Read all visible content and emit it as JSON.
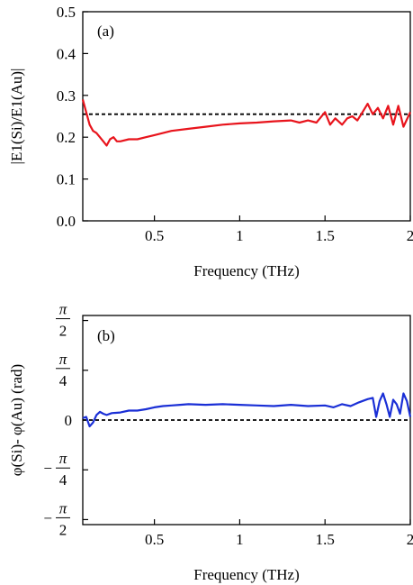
{
  "chart_data": [
    {
      "id": "a",
      "type": "line",
      "panel_label": "(a)",
      "xlabel": "Frequency (THz)",
      "ylabel": "|E1(Si)/E1(Au)|",
      "xlim": [
        0.08,
        2.0
      ],
      "ylim": [
        0.0,
        0.5
      ],
      "x_ticks": [
        0.5,
        1,
        1.5,
        2
      ],
      "x_tick_labels": [
        "0.5",
        "1",
        "1.5",
        "2"
      ],
      "y_ticks": [
        0.0,
        0.1,
        0.2,
        0.3,
        0.4,
        0.5
      ],
      "y_tick_labels": [
        "0.0",
        "0.1",
        "0.2",
        "0.3",
        "0.4",
        "0.5"
      ],
      "reference_line": {
        "y": 0.255,
        "style": "dashed",
        "color": "#000000"
      },
      "series": [
        {
          "color": "#e8141c",
          "x": [
            0.08,
            0.1,
            0.12,
            0.14,
            0.16,
            0.18,
            0.2,
            0.22,
            0.24,
            0.26,
            0.28,
            0.3,
            0.35,
            0.4,
            0.45,
            0.5,
            0.55,
            0.6,
            0.7,
            0.8,
            0.9,
            1.0,
            1.1,
            1.2,
            1.3,
            1.35,
            1.4,
            1.45,
            1.5,
            1.53,
            1.56,
            1.6,
            1.63,
            1.66,
            1.69,
            1.72,
            1.75,
            1.78,
            1.81,
            1.84,
            1.87,
            1.9,
            1.93,
            1.96,
            2.0
          ],
          "values": [
            0.29,
            0.26,
            0.23,
            0.215,
            0.21,
            0.2,
            0.19,
            0.18,
            0.195,
            0.2,
            0.19,
            0.19,
            0.195,
            0.195,
            0.2,
            0.205,
            0.21,
            0.215,
            0.22,
            0.225,
            0.23,
            0.233,
            0.235,
            0.238,
            0.24,
            0.235,
            0.24,
            0.235,
            0.26,
            0.23,
            0.245,
            0.23,
            0.245,
            0.25,
            0.24,
            0.26,
            0.28,
            0.255,
            0.27,
            0.245,
            0.275,
            0.23,
            0.275,
            0.225,
            0.26
          ]
        }
      ]
    },
    {
      "id": "b",
      "type": "line",
      "panel_label": "(b)",
      "xlabel": "Frequency (THz)",
      "ylabel": "φ(Si)- φ(Au) (rad)",
      "xlim": [
        0.08,
        2.0
      ],
      "ylim": [
        -1.65,
        1.65
      ],
      "x_ticks": [
        0.5,
        1,
        1.5,
        2
      ],
      "x_tick_labels": [
        "0.5",
        "1",
        "1.5",
        "2"
      ],
      "y_ticks": [
        -1.5708,
        -0.7854,
        0,
        0.7854,
        1.5708
      ],
      "y_tick_labels": [
        {
          "sign": "−",
          "num": "π",
          "den": "2"
        },
        {
          "sign": "−",
          "num": "π",
          "den": "4"
        },
        {
          "sign": "",
          "num": "0",
          "den": ""
        },
        {
          "sign": "",
          "num": "π",
          "den": "4"
        },
        {
          "sign": "",
          "num": "π",
          "den": "2"
        }
      ],
      "reference_line": {
        "y": 0.0,
        "style": "dashed",
        "color": "#000000"
      },
      "series": [
        {
          "color": "#1a2fd6",
          "x": [
            0.08,
            0.1,
            0.12,
            0.14,
            0.16,
            0.18,
            0.2,
            0.22,
            0.25,
            0.3,
            0.35,
            0.4,
            0.45,
            0.5,
            0.55,
            0.6,
            0.65,
            0.7,
            0.8,
            0.9,
            1.0,
            1.1,
            1.2,
            1.3,
            1.4,
            1.5,
            1.55,
            1.6,
            1.65,
            1.7,
            1.75,
            1.78,
            1.8,
            1.82,
            1.84,
            1.86,
            1.88,
            1.9,
            1.92,
            1.94,
            1.96,
            1.98,
            2.0
          ],
          "values": [
            0.03,
            0.05,
            -0.1,
            -0.04,
            0.08,
            0.13,
            0.1,
            0.08,
            0.11,
            0.12,
            0.15,
            0.15,
            0.17,
            0.2,
            0.22,
            0.23,
            0.24,
            0.25,
            0.24,
            0.25,
            0.24,
            0.23,
            0.22,
            0.24,
            0.22,
            0.23,
            0.2,
            0.25,
            0.22,
            0.28,
            0.33,
            0.35,
            0.05,
            0.3,
            0.42,
            0.25,
            0.05,
            0.32,
            0.25,
            0.1,
            0.42,
            0.3,
            0.05
          ]
        }
      ]
    }
  ]
}
